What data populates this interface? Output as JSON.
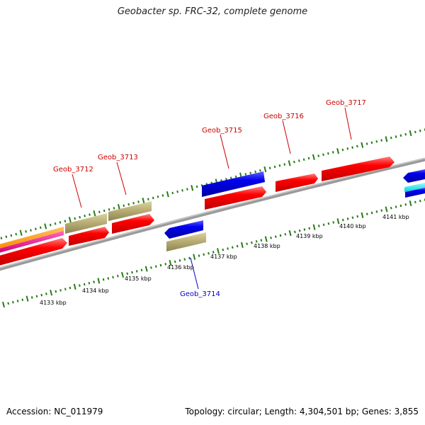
{
  "title": "Geobacter sp. FRC-32, complete genome",
  "footer": {
    "accession": "Accession: NC_011979",
    "summary": "Topology: circular; Length: 4,304,501 bp; Genes: 3,855"
  },
  "colors": {
    "backbone": "#888888",
    "ticks": "#2a7a1a",
    "forward_label": "#cc0000",
    "reverse_label": "#0000cc",
    "red_gene": "#ff0000",
    "blue_gene": "#0000ee",
    "khaki_gene": "#bdb279",
    "orange_gene": "#ff9900",
    "magenta_gene": "#ee1188",
    "cyan_gene": "#00e5ee"
  },
  "gene_labels": [
    {
      "text": "Geob_3712",
      "strand": "forward"
    },
    {
      "text": "Geob_3713",
      "strand": "forward"
    },
    {
      "text": "Geob_3714",
      "strand": "reverse"
    },
    {
      "text": "Geob_3715",
      "strand": "forward"
    },
    {
      "text": "Geob_3716",
      "strand": "forward"
    },
    {
      "text": "Geob_3717",
      "strand": "forward"
    }
  ],
  "kbp_labels": [
    "4133 kbp",
    "4134 kbp",
    "4135 kbp",
    "4136 kbp",
    "4137 kbp",
    "4138 kbp",
    "4139 kbp",
    "4140 kbp",
    "4141 kbp"
  ]
}
